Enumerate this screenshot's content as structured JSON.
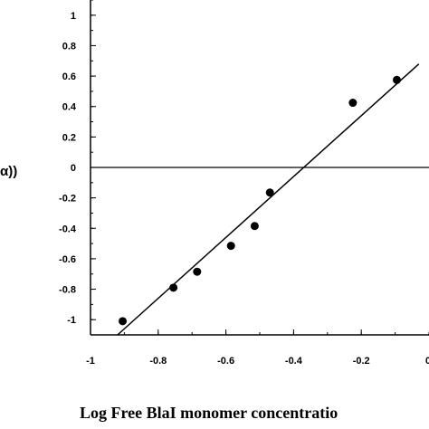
{
  "chart_data": {
    "type": "scatter",
    "title": "",
    "xlabel": "Log Free BlaI monomer concentratio",
    "ylabel_visible": "α))",
    "xlim": [
      -1.0,
      0.0
    ],
    "ylim": [
      -1.1,
      1.1
    ],
    "x_ticks": [
      -1,
      -0.8,
      -0.6,
      -0.4,
      -0.2
    ],
    "x_tick_labels": [
      "-1",
      "-0.8",
      "-0.6",
      "-0.4",
      "-0.2"
    ],
    "x_tick_label_partial": "0",
    "y_ticks": [
      -1,
      -0.8,
      -0.6,
      -0.4,
      -0.2,
      0,
      0.2,
      0.4,
      0.6,
      0.8,
      1
    ],
    "y_tick_labels": [
      "-1",
      "-0.8",
      "-0.6",
      "-0.4",
      "-0.2",
      "0",
      "0.2",
      "0.4",
      "0.6",
      "0.8",
      "1"
    ],
    "points": [
      {
        "x": -0.905,
        "y": -1.01
      },
      {
        "x": -0.755,
        "y": -0.79
      },
      {
        "x": -0.685,
        "y": -0.685
      },
      {
        "x": -0.585,
        "y": -0.515
      },
      {
        "x": -0.515,
        "y": -0.385
      },
      {
        "x": -0.47,
        "y": -0.165
      },
      {
        "x": -0.225,
        "y": 0.425
      },
      {
        "x": -0.095,
        "y": 0.575
      }
    ],
    "fit_line": {
      "x1": -0.92,
      "y1": -1.1,
      "x2": -0.03,
      "y2": 0.68
    },
    "zero_line": 0,
    "grid": false
  }
}
